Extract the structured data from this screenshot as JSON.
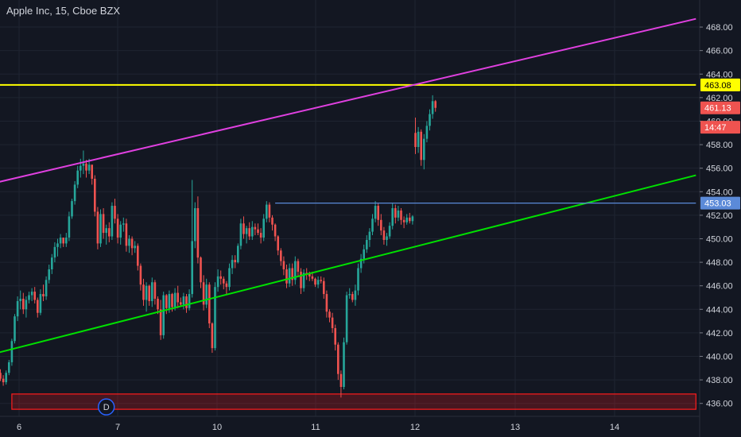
{
  "symbol_title": "Apple Inc, 15, Cboe BZX",
  "chart_data": {
    "type": "candlestick",
    "title": "Apple Inc, 15, Cboe BZX",
    "y_axis": {
      "ticks": [
        "436.00",
        "438.00",
        "440.00",
        "442.00",
        "444.00",
        "446.00",
        "448.00",
        "450.00",
        "452.00",
        "454.00",
        "456.00",
        "458.00",
        "460.00",
        "462.00",
        "464.00",
        "466.00",
        "468.00"
      ],
      "range": [
        434.9,
        470.3
      ]
    },
    "x_axis": {
      "ticks": [
        "6",
        "7",
        "10",
        "11",
        "12",
        "13",
        "14"
      ]
    },
    "price_labels": [
      {
        "text": "463.08",
        "value": 463.08,
        "color": "#ffff00",
        "text_color": "#000000"
      },
      {
        "text": "461.13",
        "value": 461.13,
        "color": "#ef5350",
        "text_color": "#ffffff"
      },
      {
        "text": "14:47",
        "value": 459.48,
        "color": "#ef5350",
        "text_color": "#ffffff"
      },
      {
        "text": "453.03",
        "value": 453.03,
        "color": "#5b8ad8",
        "text_color": "#ffffff"
      }
    ],
    "lines": [
      {
        "name": "resistance-horizontal",
        "color": "#ffff00",
        "points": [
          [
            -30,
            463.08
          ],
          [
            243,
            463.08
          ]
        ]
      },
      {
        "name": "upper-trendline",
        "color": "#e040e0",
        "points": [
          [
            -1,
            454.8
          ],
          [
            243,
            468.7
          ]
        ]
      },
      {
        "name": "lower-trendline",
        "color": "#00e000",
        "points": [
          [
            -1,
            440.3
          ],
          [
            243,
            455.4
          ]
        ]
      },
      {
        "name": "level-453",
        "color": "#5b8ad8",
        "points": [
          [
            96,
            453.03
          ],
          [
            243,
            453.03
          ]
        ]
      }
    ],
    "zones": [
      {
        "name": "demand-zone",
        "color": "#ff1c1c",
        "x": [
          4,
          243
        ],
        "y": [
          435.5,
          436.8
        ]
      }
    ],
    "markers": [
      {
        "text": "D",
        "x": 37,
        "value": 435.7
      }
    ],
    "candles": [
      [
        438.6,
        438.9,
        437.9,
        438.1
      ],
      [
        438.1,
        438.4,
        437.5,
        437.8
      ],
      [
        437.8,
        438.8,
        437.6,
        438.6
      ],
      [
        438.6,
        439.7,
        438.4,
        439.5
      ],
      [
        439.5,
        441.5,
        439.2,
        441.3
      ],
      [
        441.3,
        443.6,
        441.1,
        443.4
      ],
      [
        443.4,
        445.1,
        443.0,
        444.7
      ],
      [
        444.7,
        445.6,
        444.0,
        444.9
      ],
      [
        444.9,
        445.4,
        443.6,
        444.0
      ],
      [
        444.0,
        445.1,
        443.3,
        444.8
      ],
      [
        444.8,
        445.5,
        444.5,
        445.2
      ],
      [
        445.2,
        445.8,
        444.7,
        445.5
      ],
      [
        445.5,
        445.9,
        444.5,
        444.8
      ],
      [
        444.8,
        445.0,
        443.3,
        443.7
      ],
      [
        443.7,
        445.7,
        443.5,
        445.3
      ],
      [
        445.3,
        446.1,
        444.7,
        445.1
      ],
      [
        445.1,
        446.8,
        444.8,
        446.5
      ],
      [
        446.5,
        447.8,
        446.2,
        447.4
      ],
      [
        447.4,
        448.7,
        447.0,
        448.4
      ],
      [
        448.4,
        449.7,
        448.0,
        449.3
      ],
      [
        449.3,
        450.0,
        448.5,
        449.6
      ],
      [
        449.6,
        450.4,
        449.2,
        450.1
      ],
      [
        450.1,
        449.9,
        449.3,
        449.6
      ],
      [
        449.6,
        450.5,
        449.3,
        450.1
      ],
      [
        450.1,
        452.3,
        449.8,
        451.9
      ],
      [
        451.9,
        453.4,
        451.7,
        453.2
      ],
      [
        453.2,
        454.9,
        452.9,
        454.6
      ],
      [
        454.6,
        456.2,
        454.3,
        455.8
      ],
      [
        455.8,
        456.8,
        455.2,
        456.2
      ],
      [
        456.2,
        457.5,
        455.5,
        456.4
      ],
      [
        456.4,
        456.7,
        455.2,
        455.8
      ],
      [
        455.8,
        456.8,
        455.5,
        456.3
      ],
      [
        456.3,
        456.2,
        454.6,
        455.1
      ],
      [
        455.1,
        455.4,
        451.9,
        452.3
      ],
      [
        452.3,
        452.7,
        449.1,
        449.6
      ],
      [
        449.6,
        452.5,
        449.3,
        452.1
      ],
      [
        452.1,
        452.6,
        450.0,
        450.5
      ],
      [
        450.5,
        451.2,
        449.5,
        450.9
      ],
      [
        450.9,
        451.4,
        449.7,
        450.2
      ],
      [
        450.2,
        453.1,
        449.9,
        452.8
      ],
      [
        452.8,
        453.4,
        451.3,
        451.7
      ],
      [
        451.7,
        452.1,
        449.6,
        450.1
      ],
      [
        450.1,
        451.5,
        449.5,
        451.2
      ],
      [
        451.2,
        451.8,
        450.6,
        451.3
      ],
      [
        451.3,
        451.7,
        448.9,
        449.4
      ],
      [
        449.4,
        450.3,
        448.8,
        450.0
      ],
      [
        450.0,
        450.2,
        448.6,
        449.2
      ],
      [
        449.2,
        449.8,
        448.8,
        449.4
      ],
      [
        449.4,
        449.6,
        447.3,
        447.7
      ],
      [
        447.7,
        447.9,
        445.6,
        446.1
      ],
      [
        446.1,
        446.6,
        444.3,
        444.8
      ],
      [
        444.8,
        446.3,
        443.8,
        446.0
      ],
      [
        446.0,
        446.1,
        444.3,
        444.7
      ],
      [
        444.7,
        446.7,
        444.2,
        446.3
      ],
      [
        446.3,
        446.5,
        444.4,
        444.9
      ],
      [
        444.9,
        445.1,
        443.6,
        444.0
      ],
      [
        444.0,
        444.8,
        441.4,
        441.8
      ],
      [
        441.8,
        445.5,
        441.5,
        445.2
      ],
      [
        445.2,
        445.3,
        443.6,
        444.1
      ],
      [
        444.1,
        445.6,
        443.7,
        445.3
      ],
      [
        445.3,
        445.4,
        443.8,
        444.2
      ],
      [
        444.2,
        445.8,
        443.9,
        445.4
      ],
      [
        445.4,
        446.0,
        444.1,
        444.6
      ],
      [
        444.6,
        445.0,
        444.2,
        444.4
      ],
      [
        444.4,
        445.4,
        444.0,
        445.1
      ],
      [
        445.1,
        445.3,
        443.7,
        444.1
      ],
      [
        444.1,
        445.7,
        443.9,
        445.3
      ],
      [
        445.3,
        455.0,
        445.0,
        449.8
      ],
      [
        449.8,
        453.1,
        449.2,
        452.6
      ],
      [
        452.6,
        453.6,
        447.9,
        448.4
      ],
      [
        448.4,
        448.5,
        445.8,
        446.3
      ],
      [
        446.3,
        446.9,
        443.9,
        444.4
      ],
      [
        444.4,
        446.6,
        444.1,
        446.1
      ],
      [
        446.1,
        446.3,
        442.4,
        442.8
      ],
      [
        442.8,
        442.9,
        440.3,
        440.7
      ],
      [
        440.7,
        446.3,
        440.5,
        445.9
      ],
      [
        445.9,
        447.4,
        445.5,
        446.8
      ],
      [
        446.8,
        447.3,
        446.1,
        446.6
      ],
      [
        446.6,
        446.8,
        445.7,
        446.2
      ],
      [
        446.2,
        446.4,
        445.3,
        445.9
      ],
      [
        445.9,
        447.9,
        445.6,
        447.5
      ],
      [
        447.5,
        448.6,
        447.0,
        448.2
      ],
      [
        448.2,
        448.6,
        447.5,
        448.0
      ],
      [
        448.0,
        449.6,
        447.9,
        449.4
      ],
      [
        449.4,
        451.7,
        449.1,
        451.3
      ],
      [
        451.3,
        451.9,
        450.0,
        450.4
      ],
      [
        450.4,
        451.1,
        449.6,
        450.9
      ],
      [
        450.9,
        451.4,
        449.9,
        450.2
      ],
      [
        450.2,
        451.5,
        449.9,
        451.0
      ],
      [
        451.0,
        451.3,
        450.3,
        450.8
      ],
      [
        450.8,
        451.3,
        450.3,
        450.5
      ],
      [
        450.5,
        450.9,
        449.6,
        450.1
      ],
      [
        450.1,
        452.1,
        449.8,
        451.7
      ],
      [
        451.7,
        453.2,
        451.4,
        452.9
      ],
      [
        452.9,
        453.1,
        451.4,
        451.8
      ],
      [
        451.8,
        452.0,
        450.7,
        451.2
      ],
      [
        451.2,
        451.3,
        449.8,
        450.2
      ],
      [
        450.2,
        450.3,
        448.6,
        449.0
      ],
      [
        449.0,
        449.2,
        447.7,
        448.1
      ],
      [
        448.1,
        448.5,
        446.9,
        447.4
      ],
      [
        447.4,
        447.8,
        445.8,
        446.2
      ],
      [
        446.2,
        447.9,
        445.9,
        447.5
      ],
      [
        447.5,
        447.9,
        446.0,
        446.5
      ],
      [
        446.5,
        448.5,
        446.1,
        448.1
      ],
      [
        448.1,
        448.3,
        446.8,
        447.2
      ],
      [
        447.2,
        447.5,
        445.3,
        445.8
      ],
      [
        445.8,
        447.4,
        445.5,
        447.1
      ],
      [
        447.1,
        447.5,
        446.5,
        447.0
      ],
      [
        447.0,
        447.2,
        446.4,
        446.8
      ],
      [
        446.8,
        447.2,
        446.4,
        446.6
      ],
      [
        446.6,
        446.7,
        445.9,
        446.1
      ],
      [
        446.1,
        446.8,
        445.8,
        446.5
      ],
      [
        446.5,
        446.8,
        446.2,
        446.4
      ],
      [
        446.4,
        446.7,
        444.9,
        445.3
      ],
      [
        445.3,
        445.6,
        443.3,
        443.8
      ],
      [
        443.8,
        444.0,
        442.9,
        443.3
      ],
      [
        443.3,
        443.7,
        442.0,
        442.4
      ],
      [
        442.4,
        442.7,
        440.5,
        441.0
      ],
      [
        441.0,
        441.2,
        438.0,
        438.5
      ],
      [
        438.5,
        438.8,
        436.5,
        437.4
      ],
      [
        437.4,
        441.6,
        437.2,
        441.2
      ],
      [
        441.2,
        445.5,
        441.0,
        445.2
      ],
      [
        445.2,
        445.8,
        444.9,
        445.3
      ],
      [
        445.3,
        445.5,
        444.6,
        444.8
      ],
      [
        444.8,
        446.1,
        444.3,
        445.6
      ],
      [
        445.6,
        447.9,
        445.2,
        447.5
      ],
      [
        447.5,
        448.7,
        447.1,
        448.3
      ],
      [
        448.3,
        449.5,
        447.9,
        449.1
      ],
      [
        449.1,
        450.3,
        448.8,
        449.9
      ],
      [
        449.9,
        450.9,
        449.3,
        450.6
      ],
      [
        450.6,
        452.1,
        450.3,
        451.7
      ],
      [
        451.7,
        453.2,
        451.4,
        452.8
      ],
      [
        452.8,
        453.0,
        451.1,
        451.6
      ],
      [
        451.6,
        452.1,
        450.3,
        450.7
      ],
      [
        450.7,
        451.0,
        449.5,
        449.9
      ],
      [
        449.9,
        450.5,
        449.4,
        450.2
      ],
      [
        450.2,
        451.4,
        450.0,
        451.1
      ],
      [
        451.1,
        453.0,
        450.8,
        452.6
      ],
      [
        452.6,
        452.9,
        451.3,
        451.8
      ],
      [
        451.8,
        452.8,
        451.5,
        452.4
      ],
      [
        452.4,
        452.6,
        451.2,
        451.6
      ],
      [
        451.6,
        451.9,
        450.9,
        451.4
      ],
      [
        451.4,
        452.1,
        451.2,
        451.8
      ],
      [
        451.8,
        452.2,
        451.3,
        451.5
      ],
      [
        451.5,
        452.0,
        451.2,
        451.9
      ],
      [
        459.0,
        460.3,
        457.2,
        457.8
      ],
      [
        457.8,
        459.5,
        457.3,
        459.1
      ],
      [
        459.1,
        459.3,
        456.2,
        456.7
      ],
      [
        456.7,
        458.9,
        455.9,
        458.5
      ],
      [
        458.5,
        460.0,
        458.2,
        459.6
      ],
      [
        459.6,
        461.0,
        459.2,
        460.6
      ],
      [
        460.6,
        462.2,
        460.2,
        461.7
      ],
      [
        461.7,
        461.8,
        460.8,
        461.13
      ]
    ]
  }
}
